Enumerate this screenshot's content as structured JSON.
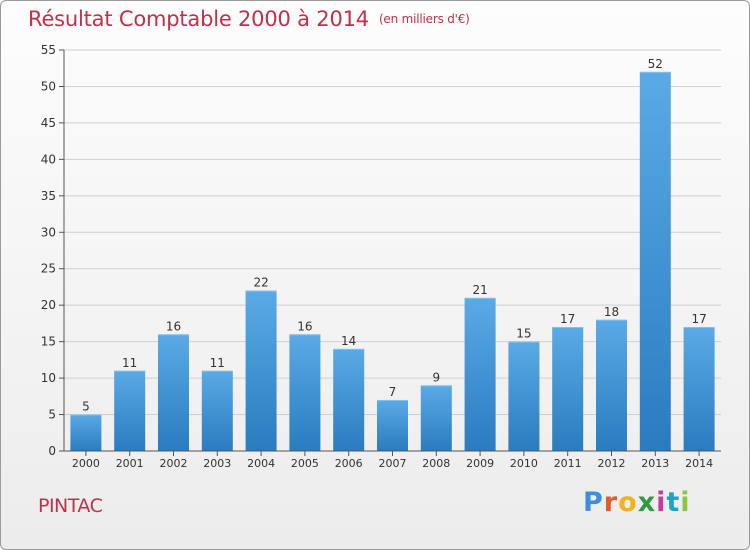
{
  "header": {
    "title": "Résultat Comptable 2000 à 2014",
    "subtitle": "(en milliers d'€)"
  },
  "footer": {
    "place": "PINTAC",
    "brand": "Proxiti",
    "brand_colors": [
      "#3c8fd8",
      "#e45a2a",
      "#f2b21b",
      "#2f9a3e",
      "#c93a9b",
      "#1aa5c4",
      "#8cc63f"
    ]
  },
  "chart_data": {
    "type": "bar",
    "title": "Résultat Comptable 2000 à 2014",
    "subtitle": "(en milliers d'€)",
    "categories": [
      "2000",
      "2001",
      "2002",
      "2003",
      "2004",
      "2005",
      "2006",
      "2007",
      "2008",
      "2009",
      "2010",
      "2011",
      "2012",
      "2013",
      "2014"
    ],
    "values": [
      5,
      11,
      16,
      11,
      22,
      16,
      14,
      7,
      9,
      21,
      15,
      17,
      18,
      52,
      17
    ],
    "ylim": [
      0,
      55
    ],
    "yticks": [
      0,
      5,
      10,
      15,
      20,
      25,
      30,
      35,
      40,
      45,
      50,
      55
    ],
    "xlabel": "",
    "ylabel": "",
    "grid": true,
    "colors": {
      "bar_top": "#5aaae6",
      "bar_bottom": "#2a7cbf",
      "grid": "#cfcfcf",
      "axis": "#555555",
      "text": "#333333"
    }
  }
}
